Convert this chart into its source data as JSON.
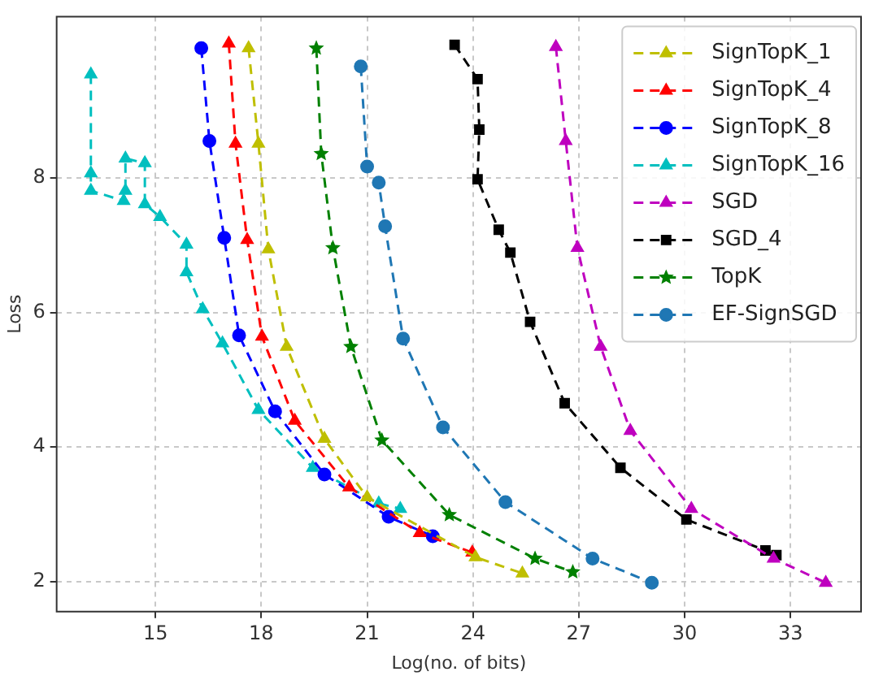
{
  "chart_data": {
    "type": "line",
    "xlabel": "Log(no. of bits)",
    "ylabel": "Loss",
    "xlim": [
      12.2,
      35
    ],
    "ylim": [
      1.55,
      10.4
    ],
    "xticks": [
      15,
      18,
      21,
      24,
      27,
      30,
      33
    ],
    "yticks": [
      2,
      4,
      6,
      8
    ],
    "grid": true,
    "legend": "top right",
    "line_style": "dashed",
    "series": [
      {
        "name": "SignTopK_1",
        "color": "#bfbf00",
        "marker": "triangle",
        "x": [
          17.64,
          17.92,
          18.2,
          18.72,
          19.79,
          21.0,
          24.07,
          25.4
        ],
        "values": [
          9.93,
          8.51,
          6.94,
          5.49,
          4.12,
          3.25,
          2.36,
          2.12
        ]
      },
      {
        "name": "SignTopK_4",
        "color": "#ff0000",
        "marker": "triangle",
        "x": [
          17.08,
          17.27,
          17.6,
          18.02,
          18.95,
          20.49,
          22.49,
          23.98
        ],
        "values": [
          10.0,
          8.51,
          7.08,
          5.64,
          4.39,
          3.4,
          2.72,
          2.43
        ]
      },
      {
        "name": "SignTopK_8",
        "color": "#0000ff",
        "marker": "circle",
        "x": [
          16.3,
          16.53,
          16.95,
          17.37,
          18.39,
          19.79,
          21.61,
          22.86
        ],
        "values": [
          9.93,
          8.55,
          7.11,
          5.66,
          4.53,
          3.59,
          2.96,
          2.67
        ]
      },
      {
        "name": "SignTopK_16",
        "color": "#00bfbf",
        "marker": "triangle",
        "x": [
          13.17,
          13.17,
          13.17,
          14.1,
          14.15,
          14.15,
          14.7,
          14.7,
          15.13,
          15.88,
          15.88,
          16.34,
          16.9,
          17.92,
          19.46,
          21.33,
          21.94
        ],
        "values": [
          9.54,
          8.07,
          7.81,
          7.66,
          7.81,
          8.29,
          8.22,
          7.61,
          7.42,
          7.01,
          6.6,
          6.05,
          5.54,
          4.55,
          3.69,
          3.16,
          3.08
        ]
      },
      {
        "name": "SGD",
        "color": "#bf00bf",
        "marker": "triangle",
        "x": [
          26.35,
          26.63,
          26.96,
          27.62,
          28.46,
          30.19,
          32.52,
          34.0
        ],
        "values": [
          9.95,
          8.55,
          6.96,
          5.49,
          4.24,
          3.08,
          2.34,
          1.98
        ]
      },
      {
        "name": "SGD_4",
        "color": "#000000",
        "marker": "square",
        "x": [
          23.48,
          24.13,
          24.18,
          24.13,
          24.73,
          25.06,
          25.62,
          26.6,
          28.18,
          30.05,
          32.29,
          32.6
        ],
        "values": [
          9.98,
          9.47,
          8.72,
          7.98,
          7.23,
          6.89,
          5.86,
          4.65,
          3.69,
          2.92,
          2.46,
          2.39
        ]
      },
      {
        "name": "TopK",
        "color": "#008000",
        "marker": "star",
        "x": [
          19.56,
          19.7,
          20.03,
          20.54,
          21.42,
          23.33,
          25.76,
          26.83
        ],
        "values": [
          9.93,
          8.36,
          6.96,
          5.49,
          4.1,
          2.99,
          2.34,
          2.14
        ]
      },
      {
        "name": "EF-SignSGD",
        "color": "#1f77b4",
        "marker": "circle",
        "x": [
          20.82,
          21.0,
          21.33,
          21.51,
          22.02,
          23.15,
          24.92,
          27.39,
          29.07
        ],
        "values": [
          9.66,
          8.17,
          7.93,
          7.28,
          5.61,
          4.29,
          3.18,
          2.34,
          1.98
        ]
      }
    ]
  }
}
